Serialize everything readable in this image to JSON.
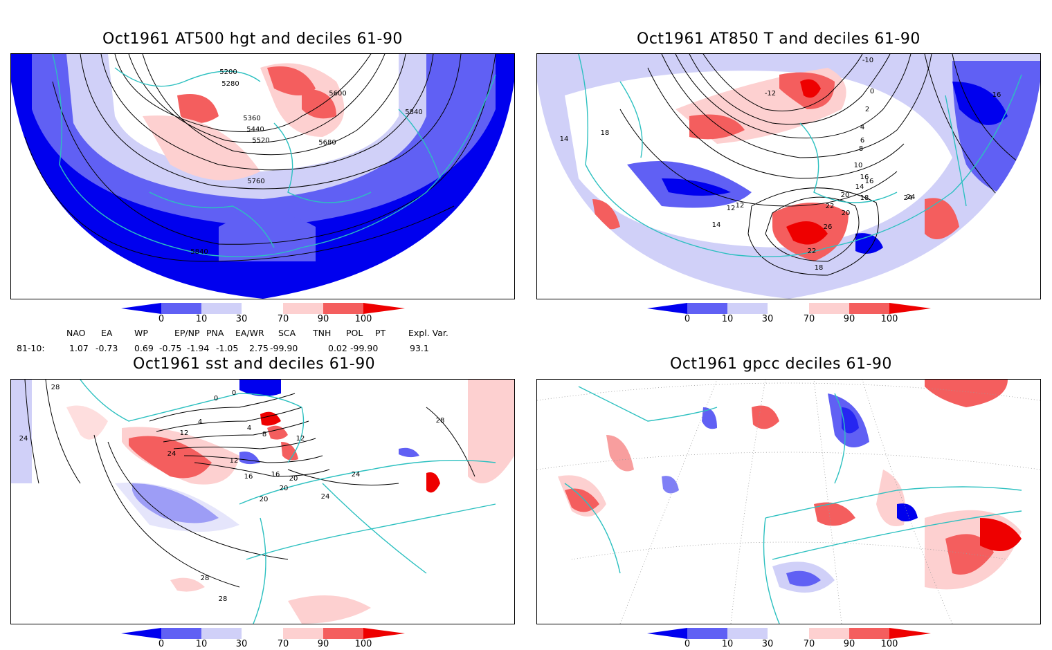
{
  "panels": {
    "hgt": {
      "title": "Oct1961 AT500 hgt and deciles 61-90",
      "contour_labels": [
        "5200",
        "5280",
        "5360",
        "5440",
        "5520",
        "5600",
        "5680",
        "5760",
        "5840",
        "5840"
      ]
    },
    "t850": {
      "title": "Oct1961 AT850 T and deciles 61-90",
      "contour_labels": [
        "-10",
        "-12",
        "0",
        "2",
        "4",
        "6",
        "8",
        "10",
        "12",
        "14",
        "16",
        "18",
        "20",
        "22",
        "24",
        "26",
        "18",
        "16",
        "14",
        "12",
        "14",
        "16",
        "18",
        "20",
        "22",
        "24"
      ]
    },
    "sst": {
      "title": "Oct1961 sst and deciles 61-90",
      "contour_labels": [
        "28",
        "24",
        "0",
        "0",
        "4",
        "4",
        "8",
        "12",
        "12",
        "16",
        "20",
        "24",
        "28",
        "28",
        "24",
        "20",
        "12",
        "16",
        "20",
        "24",
        "28"
      ]
    },
    "gpcc": {
      "title": "Oct1961 gpcc deciles 61-90"
    }
  },
  "colorbar": {
    "ticks": [
      "0",
      "10",
      "30",
      "70",
      "90",
      "100"
    ],
    "colors": [
      "#0000ee",
      "#6060f4",
      "#d0d0f8",
      "#ffffff",
      "#fdd0d0",
      "#f45e5e",
      "#ee0000"
    ]
  },
  "indices": {
    "names": [
      "NAO",
      "EA",
      "WP",
      "EP/NP",
      "PNA",
      "EA/WR",
      "SCA",
      "TNH",
      "POL",
      "PT",
      "Expl. Var."
    ],
    "row_label": "81-10:",
    "values": [
      "1.07",
      "-0.73",
      "0.69",
      "-0.75",
      "-1.94",
      "-1.05",
      "2.75",
      "-99.90",
      "0.02",
      "-99.90",
      "93.1"
    ]
  }
}
